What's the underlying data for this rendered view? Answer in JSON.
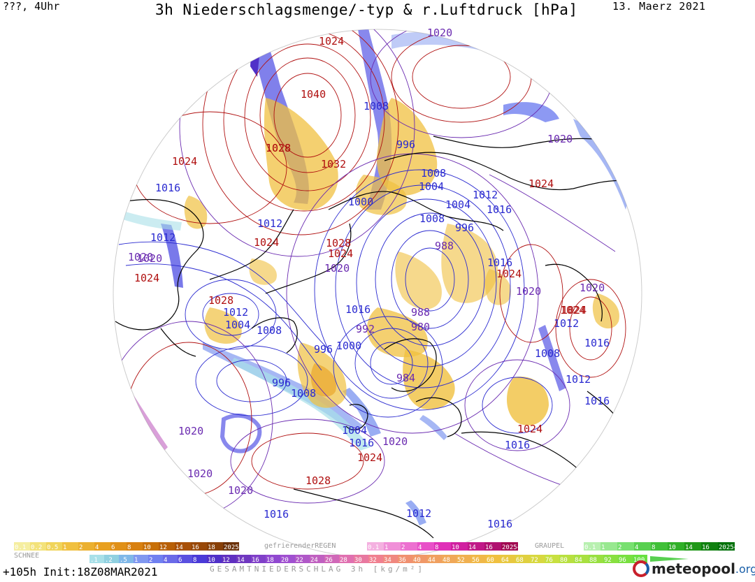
{
  "header": {
    "left": "???, 4Uhr",
    "title": "3h Niederschlagsmenge/-typ & r.Luftdruck [hPa]",
    "date": "13. Maerz 2021"
  },
  "footer": {
    "init": "+105h  Init:18Z08MAR2021",
    "total_label": "GESAMTNIEDERSCHLAG 3h [kg/m²]",
    "logo": "meteopool",
    "logo_suffix": ".org"
  },
  "legend": {
    "snow": {
      "label": "SCHNEE",
      "values": [
        "0.1",
        "0.2",
        "0.5",
        "1",
        "2",
        "4",
        "6",
        "8",
        "10",
        "12",
        "14",
        "16",
        "18",
        "2025+"
      ],
      "colors": [
        "#f5eea0",
        "#f3e27a",
        "#f0d45a",
        "#f0c040",
        "#ebb030",
        "#e8a020",
        "#e09018",
        "#d88010",
        "#c87008",
        "#b86008",
        "#a85008",
        "#984808",
        "#884008",
        "#6a3008"
      ]
    },
    "freezing_rain": {
      "label": "gefrierenderREGEN",
      "values": [
        "0.1",
        "1",
        "2",
        "4",
        "8",
        "10",
        "14",
        "16",
        "2025+"
      ],
      "colors": [
        "#f4b0e0",
        "#f090d8",
        "#ec70d0",
        "#e850c8",
        "#e030b8",
        "#d020a0",
        "#c01888",
        "#b01070",
        "#a00850"
      ]
    },
    "graupel": {
      "label": "GRAUPEL",
      "values": [
        "0.1",
        "1",
        "2",
        "4",
        "8",
        "10",
        "14",
        "16",
        "2025+"
      ],
      "colors": [
        "#b8f0b0",
        "#98e890",
        "#78e070",
        "#58d050",
        "#40c038",
        "#30b028",
        "#209818",
        "#108010",
        "#007008"
      ]
    },
    "total": {
      "values": [
        ".1",
        ".2",
        ".5",
        "1",
        "2",
        "4",
        "6",
        "8",
        "10",
        "12",
        "14",
        "16",
        "18",
        "20",
        "22",
        "24",
        "26",
        "28",
        "30",
        "32",
        "34",
        "36",
        "40",
        "44",
        "48",
        "52",
        "56",
        "60",
        "64",
        "68",
        "72",
        "76",
        "80",
        "84",
        "88",
        "92",
        "96",
        "100"
      ],
      "colors": [
        "#a8e0e8",
        "#90d0e0",
        "#80b8e8",
        "#8098f0",
        "#7080f0",
        "#6a6ae8",
        "#5a50e0",
        "#4a3ad8",
        "#5030c8",
        "#6030c0",
        "#7038c0",
        "#8040c8",
        "#9048d0",
        "#a050d0",
        "#b058c8",
        "#c060c0",
        "#d068b8",
        "#e070b0",
        "#e878a0",
        "#f08090",
        "#f08880",
        "#f09070",
        "#f09868",
        "#f0a060",
        "#f0a858",
        "#f0b050",
        "#f0b848",
        "#f0c040",
        "#e8c840",
        "#e0d040",
        "#d8d840",
        "#c8e040",
        "#b8e040",
        "#a8e040",
        "#98e040",
        "#88e040",
        "#78e040",
        "#68e040"
      ]
    }
  },
  "map": {
    "coastline_color": "#000000",
    "high_color": "#b01010",
    "low_color": "#2a2ad0",
    "mid_color": "#6a2ab0",
    "pressure_labels": [
      {
        "t": "1024",
        "c": "#b01010"
      },
      {
        "t": "1020",
        "c": "#6a2ab0"
      },
      {
        "t": "1024",
        "c": "#b01010"
      },
      {
        "t": "1028",
        "c": "#b01010"
      },
      {
        "t": "1040",
        "c": "#b01010"
      },
      {
        "t": "1008",
        "c": "#2a2ad0"
      },
      {
        "t": "996",
        "c": "#2a2ad0"
      },
      {
        "t": "1028",
        "c": "#b01010"
      },
      {
        "t": "1032",
        "c": "#b01010"
      },
      {
        "t": "1024",
        "c": "#b01010"
      },
      {
        "t": "1020",
        "c": "#6a2ab0"
      },
      {
        "t": "1016",
        "c": "#2a2ad0"
      },
      {
        "t": "1020",
        "c": "#6a2ab0"
      },
      {
        "t": "1008",
        "c": "#2a2ad0"
      },
      {
        "t": "1004",
        "c": "#2a2ad0"
      },
      {
        "t": "1012",
        "c": "#2a2ad0"
      },
      {
        "t": "1024",
        "c": "#b01010"
      },
      {
        "t": "1000",
        "c": "#2a2ad0"
      },
      {
        "t": "1004",
        "c": "#2a2ad0"
      },
      {
        "t": "1016",
        "c": "#2a2ad0"
      },
      {
        "t": "1012",
        "c": "#2a2ad0"
      },
      {
        "t": "1008",
        "c": "#2a2ad0"
      },
      {
        "t": "996",
        "c": "#2a2ad0"
      },
      {
        "t": "1012",
        "c": "#2a2ad0"
      },
      {
        "t": "1024",
        "c": "#b01010"
      },
      {
        "t": "1028",
        "c": "#b01010"
      },
      {
        "t": "1024",
        "c": "#b01010"
      },
      {
        "t": "988",
        "c": "#6a2ab0"
      },
      {
        "t": "1020",
        "c": "#6a2ab0"
      },
      {
        "t": "1024",
        "c": "#b01010"
      },
      {
        "t": "1016",
        "c": "#2a2ad0"
      },
      {
        "t": "1020",
        "c": "#6a2ab0"
      },
      {
        "t": "1024",
        "c": "#b01010"
      },
      {
        "t": "1020",
        "c": "#6a2ab0"
      },
      {
        "t": "1020",
        "c": "#6a2ab0"
      },
      {
        "t": "1028",
        "c": "#b01010"
      },
      {
        "t": "1016",
        "c": "#2a2ad0"
      },
      {
        "t": "1012",
        "c": "#2a2ad0"
      },
      {
        "t": "1004",
        "c": "#2a2ad0"
      },
      {
        "t": "1008",
        "c": "#2a2ad0"
      },
      {
        "t": "988",
        "c": "#6a2ab0"
      },
      {
        "t": "992",
        "c": "#6a2ab0"
      },
      {
        "t": "980",
        "c": "#6a2ab0"
      },
      {
        "t": "1024",
        "c": "#b01010"
      },
      {
        "t": "1012",
        "c": "#2a2ad0"
      },
      {
        "t": "996",
        "c": "#2a2ad0"
      },
      {
        "t": "1000",
        "c": "#2a2ad0"
      },
      {
        "t": "1008",
        "c": "#2a2ad0"
      },
      {
        "t": "1016",
        "c": "#2a2ad0"
      },
      {
        "t": "996",
        "c": "#2a2ad0"
      },
      {
        "t": "1008",
        "c": "#2a2ad0"
      },
      {
        "t": "984",
        "c": "#6a2ab0"
      },
      {
        "t": "1012",
        "c": "#2a2ad0"
      },
      {
        "t": "1016",
        "c": "#2a2ad0"
      },
      {
        "t": "1004",
        "c": "#2a2ad0"
      },
      {
        "t": "1016",
        "c": "#2a2ad0"
      },
      {
        "t": "1020",
        "c": "#6a2ab0"
      },
      {
        "t": "1024",
        "c": "#b01010"
      },
      {
        "t": "1016",
        "c": "#2a2ad0"
      },
      {
        "t": "1020",
        "c": "#6a2ab0"
      },
      {
        "t": "1024",
        "c": "#b01010"
      },
      {
        "t": "1020",
        "c": "#6a2ab0"
      },
      {
        "t": "1028",
        "c": "#b01010"
      },
      {
        "t": "1020",
        "c": "#6a2ab0"
      },
      {
        "t": "1016",
        "c": "#2a2ad0"
      },
      {
        "t": "1012",
        "c": "#2a2ad0"
      },
      {
        "t": "1016",
        "c": "#2a2ad0"
      }
    ]
  }
}
